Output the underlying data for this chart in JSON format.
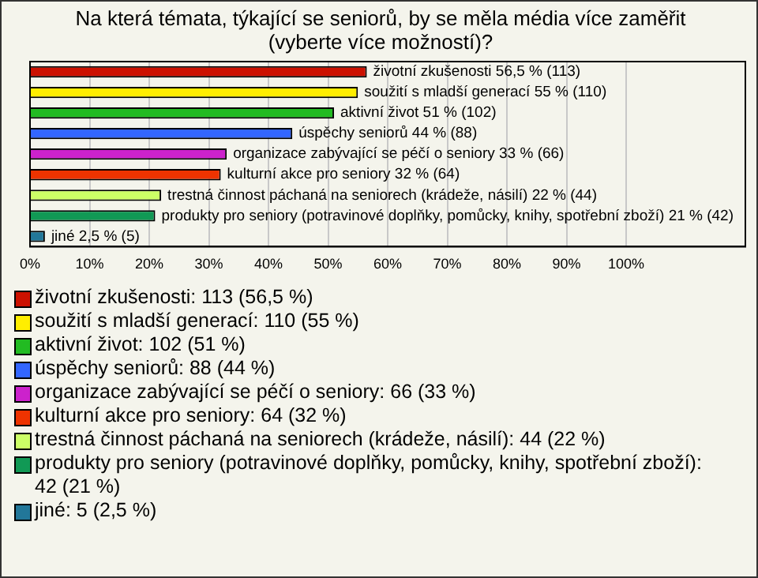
{
  "chart_data": {
    "type": "bar",
    "orientation": "horizontal",
    "title": "Na která témata, týkající se seniorů, by se měla média více zaměřit (vyberte více možností)?",
    "categories": [
      null,
      null,
      null,
      null,
      null,
      null,
      null,
      null,
      null
    ],
    "values": [
      56.5,
      55,
      51,
      44,
      33,
      32,
      22,
      21,
      2.5
    ],
    "colors": [
      "#cc1100",
      "#ffee00",
      "#22bb22",
      "#3366ff",
      "#cc22cc",
      "#ee3300",
      "#ccff66",
      "#119955",
      "#227799"
    ],
    "value_labels": [
      "životní zkušenosti 56,5 % (113)",
      "soužití s mladší generací 55 % (110)",
      "aktivní život 51 % (102)",
      "úspěchy seniorů 44 % (88)",
      "organizace zabývající se péčí o seniory 33 % (66)",
      "kulturní akce pro seniory 32 % (64)",
      "trestná činnost páchaná na seniorech (krádeže, násilí) 22 % (44)",
      "produkty pro seniory (potravinové doplňky, pomůcky, knihy, spotřební zboží) 21 % (42)",
      "jiné 2,5 % (5)"
    ],
    "xlim": [
      0,
      120
    ],
    "xticks": [
      {
        "value": 0,
        "label": "0%"
      },
      {
        "value": 10,
        "label": "10%"
      },
      {
        "value": 20,
        "label": "20%"
      },
      {
        "value": 30,
        "label": "30%"
      },
      {
        "value": 40,
        "label": "40%"
      },
      {
        "value": 50,
        "label": "50%"
      },
      {
        "value": 60,
        "label": "60%"
      },
      {
        "value": 70,
        "label": "70%"
      },
      {
        "value": 80,
        "label": "80%"
      },
      {
        "value": 90,
        "label": "90%"
      },
      {
        "value": 100,
        "label": "100%"
      }
    ],
    "grid": "x",
    "tick_labels": "x",
    "annotations": [
      "životní zkušenosti: 113 (56,5 %)",
      "soužití s mladší generací: 110 (55 %)",
      "aktivní život: 102 (51 %)",
      "úspěchy seniorů: 88 (44 %)",
      "organizace zabývající se péčí o seniory: 66 (33 %)",
      "kulturní akce pro seniory: 64 (32 %)",
      "trestná činnost páchaná na seniorech (krádeže, násilí): 44 (22 %)",
      "produkty pro seniory (potravinové doplňky, pomůcky, knihy, spotřební zboží): 42 (21 %)",
      "jiné: 5 (2,5 %)"
    ]
  }
}
